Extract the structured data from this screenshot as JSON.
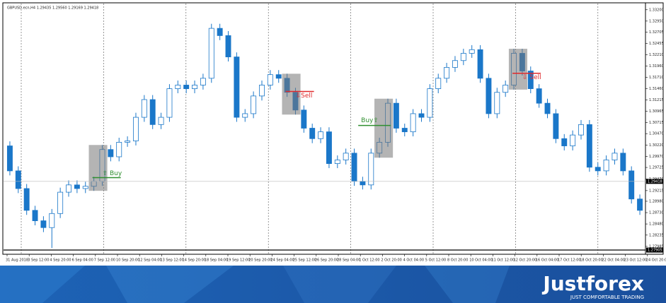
{
  "chart_data": {
    "type": "candlestick",
    "title": "GBPUSD.ecn,H4 1.29435 1.29560 1.29169 1.29418",
    "up_color": "#ffffff",
    "down_color": "#1a77c9",
    "wick_color": "#1a77c9",
    "open": [
      1.302,
      1.2965,
      1.2926,
      1.2878,
      1.2855,
      1.284,
      1.2871,
      1.2918,
      1.2934,
      1.2926,
      1.2931,
      1.2942,
      1.3012,
      1.2996,
      1.3028,
      1.3031,
      1.3083,
      1.3122,
      1.3067,
      1.3083,
      1.3146,
      1.3154,
      1.3146,
      1.3154,
      1.3169,
      1.3279,
      1.3263,
      1.3216,
      1.3083,
      1.3091,
      1.313,
      1.3154,
      1.3177,
      1.3169,
      1.3138,
      1.3099,
      1.3059,
      1.3036,
      1.3051,
      1.2981,
      1.2989,
      1.3004,
      1.2942,
      1.2934,
      1.3004,
      1.3028,
      1.3114,
      1.3059,
      1.3051,
      1.3091,
      1.3083,
      1.3146,
      1.3169,
      1.3193,
      1.3208,
      1.3224,
      1.3232,
      1.3169,
      1.3091,
      1.3138,
      1.3154,
      1.3224,
      1.3185,
      1.3146,
      1.3114,
      1.3091,
      1.3036,
      1.302,
      1.3044,
      1.3067,
      1.2973,
      1.2965,
      1.2989,
      1.3004,
      1.2965,
      1.2903
    ],
    "high": [
      1.303,
      1.2975,
      1.2936,
      1.2888,
      1.2865,
      1.2881,
      1.2928,
      1.2944,
      1.2944,
      1.2941,
      1.2952,
      1.3022,
      1.3022,
      1.3038,
      1.3041,
      1.3093,
      1.3132,
      1.3132,
      1.3093,
      1.3156,
      1.3164,
      1.3164,
      1.3164,
      1.3179,
      1.3289,
      1.3289,
      1.3273,
      1.3226,
      1.3101,
      1.314,
      1.3164,
      1.3187,
      1.3187,
      1.3179,
      1.3148,
      1.3109,
      1.3069,
      1.3061,
      1.3061,
      1.2999,
      1.3014,
      1.3014,
      1.2952,
      1.3014,
      1.3038,
      1.3124,
      1.3124,
      1.3069,
      1.3101,
      1.3101,
      1.3156,
      1.3179,
      1.3203,
      1.3218,
      1.3234,
      1.3242,
      1.3242,
      1.3179,
      1.3148,
      1.3164,
      1.3234,
      1.3234,
      1.3195,
      1.3156,
      1.3124,
      1.3101,
      1.3046,
      1.3054,
      1.3077,
      1.3077,
      1.2983,
      1.2999,
      1.3014,
      1.3014,
      1.2975,
      1.2913
    ],
    "low": [
      1.2955,
      1.2916,
      1.2868,
      1.2845,
      1.283,
      1.2795,
      1.2861,
      1.2908,
      1.2916,
      1.2916,
      1.2921,
      1.2932,
      1.2986,
      1.2986,
      1.3018,
      1.3021,
      1.3073,
      1.3057,
      1.3057,
      1.3073,
      1.3136,
      1.3136,
      1.3136,
      1.3144,
      1.3159,
      1.3253,
      1.3206,
      1.3073,
      1.3073,
      1.3081,
      1.312,
      1.3144,
      1.3159,
      1.3128,
      1.3089,
      1.3049,
      1.3026,
      1.3026,
      1.2971,
      1.2971,
      1.2979,
      1.2932,
      1.2924,
      1.2924,
      1.2994,
      1.3018,
      1.3049,
      1.3041,
      1.3041,
      1.3073,
      1.3073,
      1.3136,
      1.3159,
      1.3183,
      1.3198,
      1.3214,
      1.3159,
      1.3081,
      1.3081,
      1.3128,
      1.3144,
      1.3175,
      1.3136,
      1.3104,
      1.3081,
      1.3026,
      1.301,
      1.301,
      1.3034,
      1.2963,
      1.2955,
      1.2955,
      1.2979,
      1.2955,
      1.2893,
      1.2868
    ],
    "close": [
      1.2965,
      1.2926,
      1.2878,
      1.2855,
      1.284,
      1.2871,
      1.2918,
      1.2934,
      1.2926,
      1.2931,
      1.2942,
      1.3012,
      1.2996,
      1.3028,
      1.3031,
      1.3083,
      1.3122,
      1.3067,
      1.3083,
      1.3146,
      1.3154,
      1.3146,
      1.3154,
      1.3169,
      1.3279,
      1.3263,
      1.3216,
      1.3083,
      1.3091,
      1.313,
      1.3154,
      1.3177,
      1.3169,
      1.3138,
      1.3099,
      1.3059,
      1.3036,
      1.3051,
      1.2981,
      1.2989,
      1.3004,
      1.2942,
      1.2934,
      1.3004,
      1.3028,
      1.3114,
      1.3059,
      1.3051,
      1.3091,
      1.3083,
      1.3146,
      1.3169,
      1.3193,
      1.3208,
      1.3224,
      1.3232,
      1.3169,
      1.3091,
      1.3138,
      1.3154,
      1.3224,
      1.3185,
      1.3146,
      1.3114,
      1.3091,
      1.3036,
      1.302,
      1.3044,
      1.3067,
      1.2973,
      1.2965,
      1.2989,
      1.3004,
      1.2965,
      1.2903,
      1.2878
    ],
    "ylim": [
      1.2789,
      1.3329
    ],
    "yticks": [
      {
        "value": 1.332,
        "label": "1.33200"
      },
      {
        "value": 1.3295,
        "label": "1.32950"
      },
      1.32705,
      1.32455,
      {
        "value": 1.3221,
        "label": "1.32210"
      },
      {
        "value": 1.3196,
        "label": "1.31960"
      },
      {
        "value": 1.3171,
        "label": "1.31710"
      },
      {
        "value": 1.3146,
        "label": "1.31460"
      },
      1.31215,
      1.30965,
      1.30715,
      {
        "value": 1.3047,
        "label": "1.30470"
      },
      {
        "value": 1.3022,
        "label": "1.30220"
      },
      {
        "value": 1.2997,
        "label": "1.29970"
      },
      1.29725,
      {
        "value": 1.2947,
        "label": "1.29470"
      },
      1.29215,
      {
        "value": 1.2898,
        "label": "1.28980"
      },
      {
        "value": 1.2873,
        "label": "1.28730"
      },
      {
        "value": 1.2848,
        "label": "1.28480"
      },
      1.28235,
      1.27985
    ],
    "price_lines": [
      1.29418,
      1.27905
    ],
    "xtick_labels": [
      "31 Aug 2018",
      "3 Sep 12:00",
      "4 Sep 20:00",
      "6 Sep 04:00",
      "7 Sep 12:00",
      "10 Sep 20:00",
      "12 Sep 04:00",
      "13 Sep 12:00",
      "14 Sep 20:00",
      "18 Sep 04:00",
      "19 Sep 12:00",
      "20 Sep 20:00",
      "24 Sep 04:00",
      "25 Sep 12:00",
      "26 Sep 20:00",
      "28 Sep 04:00",
      "1 Oct 12:00",
      "2 Oct 20:00",
      "4 Oct 04:00",
      "5 Oct 12:00",
      "8 Oct 20:00",
      "10 Oct 04:00",
      "11 Oct 12:00",
      "12 Oct 20:00",
      "16 Oct 04:00",
      "17 Oct 12:00",
      "18 Oct 20:00",
      "22 Oct 04:00",
      "23 Oct 12:00",
      "24 Oct 20:00"
    ],
    "signals": [
      {
        "label": "⇧ Buy",
        "candle": 10,
        "level": 1.295,
        "color": "#2f8f2f"
      },
      {
        "label": "⇩Sell",
        "candle": 33,
        "level": 1.314,
        "color": "#e0282a"
      },
      {
        "label": "Buy⇧",
        "candle": 44,
        "level": 1.3065,
        "color": "#2f8f2f"
      },
      {
        "label": "⇩ Sell",
        "candle": 60,
        "level": 1.318,
        "color": "#e0282a"
      }
    ]
  },
  "footer": {
    "logo": "Justforex",
    "tagline": "JUST COMFORTABLE TRADING"
  }
}
